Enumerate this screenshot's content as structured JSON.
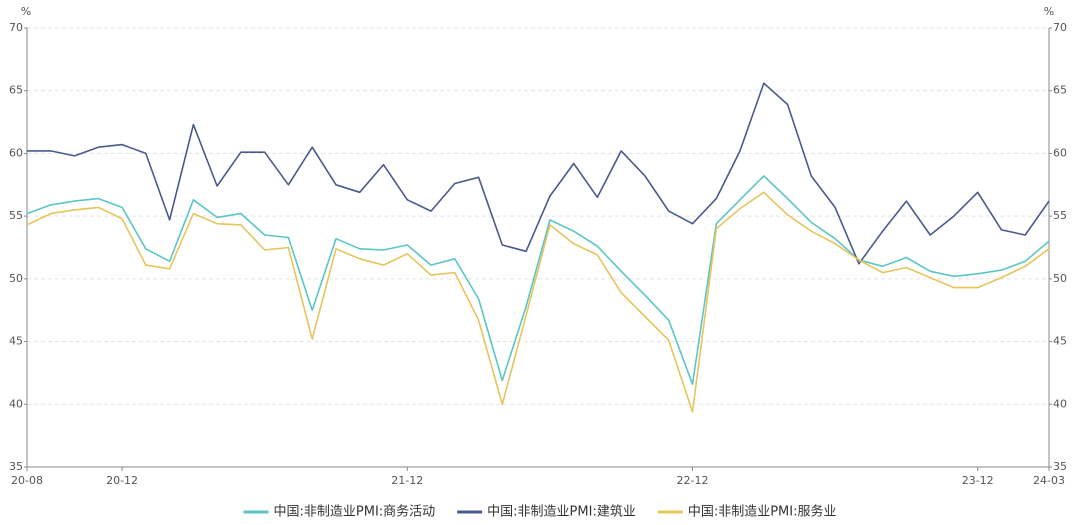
{
  "chart_data": {
    "type": "line",
    "y_unit": "%",
    "y2_unit": "%",
    "categories": [
      "20-08",
      null,
      null,
      null,
      "20-12",
      null,
      null,
      null,
      null,
      null,
      null,
      null,
      null,
      null,
      null,
      null,
      "21-12",
      null,
      null,
      null,
      null,
      null,
      null,
      null,
      null,
      null,
      null,
      null,
      "22-12",
      null,
      null,
      null,
      null,
      null,
      null,
      null,
      null,
      null,
      null,
      null,
      "23-12",
      null,
      null,
      "24-03"
    ],
    "series": [
      {
        "name": "中国:非制造业PMI:商务活动",
        "color": "#5cc6c6",
        "values": [
          55.2,
          55.9,
          56.2,
          56.4,
          55.7,
          52.4,
          51.4,
          56.3,
          54.9,
          55.2,
          53.5,
          53.3,
          47.5,
          53.2,
          52.4,
          52.3,
          52.7,
          51.1,
          51.6,
          48.4,
          41.9,
          47.8,
          54.7,
          53.8,
          52.6,
          50.6,
          48.7,
          46.7,
          41.6,
          54.4,
          56.3,
          58.2,
          56.4,
          54.5,
          53.2,
          51.5,
          51.0,
          51.7,
          50.6,
          50.2,
          50.4,
          50.7,
          51.4,
          53.0
        ]
      },
      {
        "name": "中国:非制造业PMI:建筑业",
        "color": "#4b5a8e",
        "values": [
          60.2,
          60.2,
          59.8,
          60.5,
          60.7,
          60.0,
          54.7,
          62.3,
          57.4,
          60.1,
          60.1,
          57.5,
          60.5,
          57.5,
          56.9,
          59.1,
          56.3,
          55.4,
          57.6,
          58.1,
          52.7,
          52.2,
          56.6,
          59.2,
          56.5,
          60.2,
          58.2,
          55.4,
          54.4,
          56.4,
          60.2,
          65.6,
          63.9,
          58.2,
          55.7,
          51.2,
          53.8,
          56.2,
          53.5,
          55.0,
          56.9,
          53.9,
          53.5,
          56.2
        ]
      },
      {
        "name": "中国:非制造业PMI:服务业",
        "color": "#e8c45c",
        "values": [
          54.3,
          55.2,
          55.5,
          55.7,
          54.8,
          51.1,
          50.8,
          55.2,
          54.4,
          54.3,
          52.3,
          52.5,
          45.2,
          52.4,
          51.6,
          51.1,
          52.0,
          50.3,
          50.5,
          46.7,
          40.0,
          47.1,
          54.3,
          52.8,
          51.9,
          48.9,
          47.0,
          45.1,
          39.4,
          54.0,
          55.6,
          56.9,
          55.1,
          53.8,
          52.8,
          51.5,
          50.5,
          50.9,
          50.1,
          49.3,
          49.3,
          50.1,
          51.0,
          52.4
        ]
      }
    ],
    "ylim": [
      35,
      70
    ],
    "yticks": [
      35,
      40,
      45,
      50,
      55,
      60,
      65,
      70
    ],
    "y2lim": [
      35,
      70
    ],
    "y2ticks": [
      35,
      40,
      45,
      50,
      55,
      60,
      65,
      70
    ],
    "grid": true
  }
}
